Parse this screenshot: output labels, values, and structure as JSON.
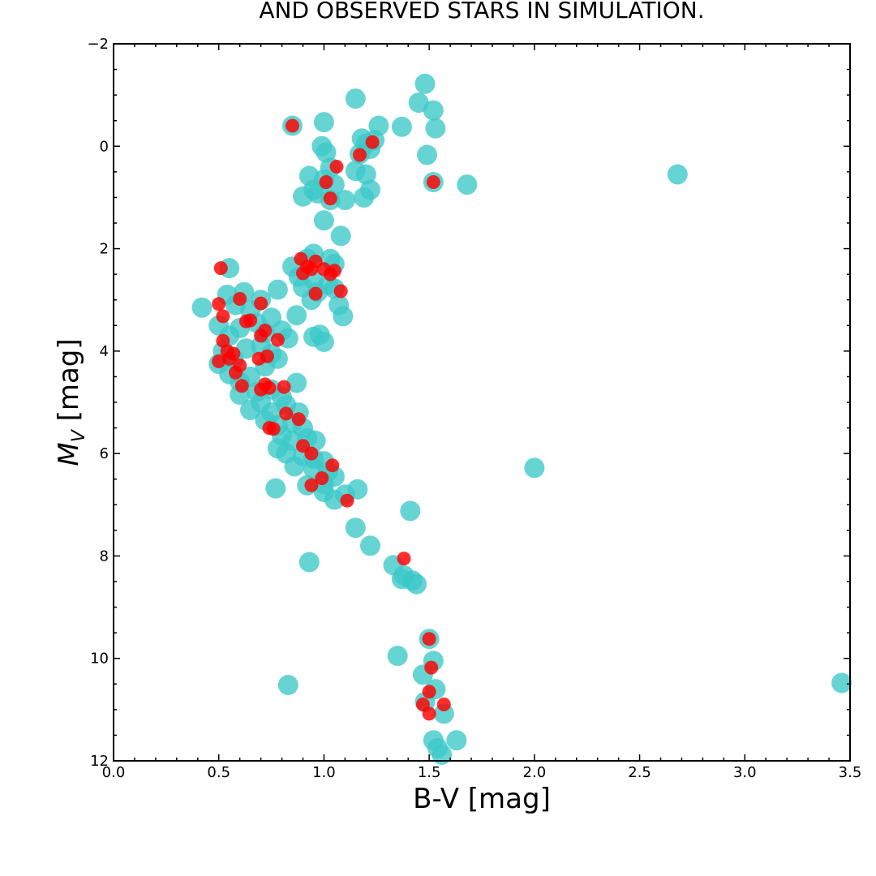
{
  "chart_data": {
    "type": "scatter",
    "title": "AND OBSERVED STARS IN SIMULATION.",
    "xlabel": "B-V [mag]",
    "ylabel_main": "M",
    "ylabel_sub": "V",
    "ylabel_rest": " [mag]",
    "xlim": [
      0.0,
      3.5
    ],
    "ylim": [
      12,
      -2
    ],
    "y_inverted": true,
    "grid": false,
    "x_ticks": [
      "0.0",
      "0.5",
      "1.0",
      "1.5",
      "2.0",
      "2.5",
      "3.0",
      "3.5"
    ],
    "y_ticks": [
      "−2",
      "0",
      "2",
      "4",
      "6",
      "8",
      "10",
      "12"
    ],
    "series": [
      {
        "color": "#3cc8c8",
        "points": [
          [
            1.48,
            -1.22
          ],
          [
            1.45,
            -0.85
          ],
          [
            1.15,
            -0.93
          ],
          [
            1.52,
            -0.7
          ],
          [
            0.85,
            -0.4
          ],
          [
            1.0,
            -0.47
          ],
          [
            1.26,
            -0.4
          ],
          [
            1.37,
            -0.38
          ],
          [
            1.53,
            -0.35
          ],
          [
            1.18,
            -0.15
          ],
          [
            1.24,
            -0.12
          ],
          [
            1.2,
            -0.05
          ],
          [
            0.99,
            0.0
          ],
          [
            1.22,
            0.05
          ],
          [
            1.01,
            0.12
          ],
          [
            1.17,
            0.15
          ],
          [
            1.49,
            0.17
          ],
          [
            1.03,
            0.42
          ],
          [
            1.15,
            0.48
          ],
          [
            0.93,
            0.58
          ],
          [
            1.2,
            0.55
          ],
          [
            1.52,
            0.7
          ],
          [
            1.68,
            0.75
          ],
          [
            2.68,
            0.55
          ],
          [
            1.0,
            0.65
          ],
          [
            1.05,
            0.75
          ],
          [
            0.95,
            0.85
          ],
          [
            1.22,
            0.85
          ],
          [
            0.9,
            0.98
          ],
          [
            1.1,
            1.05
          ],
          [
            1.03,
            1.05
          ],
          [
            1.19,
            1.0
          ],
          [
            0.97,
            0.92
          ],
          [
            1.0,
            1.45
          ],
          [
            1.08,
            1.75
          ],
          [
            0.55,
            2.38
          ],
          [
            0.85,
            2.35
          ],
          [
            0.92,
            2.2
          ],
          [
            0.95,
            2.1
          ],
          [
            1.03,
            2.2
          ],
          [
            1.05,
            2.3
          ],
          [
            0.88,
            2.55
          ],
          [
            0.95,
            2.6
          ],
          [
            1.02,
            2.7
          ],
          [
            0.9,
            2.75
          ],
          [
            1.05,
            2.78
          ],
          [
            0.97,
            2.85
          ],
          [
            0.94,
            3.0
          ],
          [
            1.07,
            3.1
          ],
          [
            1.09,
            3.32
          ],
          [
            0.87,
            3.3
          ],
          [
            0.98,
            3.68
          ],
          [
            1.0,
            3.82
          ],
          [
            0.95,
            3.72
          ],
          [
            0.42,
            3.15
          ],
          [
            0.5,
            3.5
          ],
          [
            0.54,
            2.9
          ],
          [
            0.62,
            2.85
          ],
          [
            0.58,
            3.1
          ],
          [
            0.65,
            3.2
          ],
          [
            0.7,
            3.0
          ],
          [
            0.78,
            2.8
          ],
          [
            0.75,
            3.35
          ],
          [
            0.55,
            3.7
          ],
          [
            0.6,
            3.55
          ],
          [
            0.68,
            3.45
          ],
          [
            0.72,
            3.65
          ],
          [
            0.8,
            3.6
          ],
          [
            0.83,
            3.75
          ],
          [
            0.52,
            4.0
          ],
          [
            0.57,
            4.15
          ],
          [
            0.63,
            3.95
          ],
          [
            0.7,
            3.9
          ],
          [
            0.75,
            4.05
          ],
          [
            0.5,
            4.25
          ],
          [
            0.55,
            4.45
          ],
          [
            0.6,
            4.6
          ],
          [
            0.65,
            4.5
          ],
          [
            0.72,
            4.3
          ],
          [
            0.78,
            4.15
          ],
          [
            0.6,
            4.85
          ],
          [
            0.68,
            4.8
          ],
          [
            0.75,
            4.75
          ],
          [
            0.8,
            4.9
          ],
          [
            0.87,
            4.62
          ],
          [
            0.65,
            5.15
          ],
          [
            0.7,
            5.0
          ],
          [
            0.75,
            5.2
          ],
          [
            0.82,
            5.05
          ],
          [
            0.88,
            5.2
          ],
          [
            0.72,
            5.35
          ],
          [
            0.78,
            5.45
          ],
          [
            0.85,
            5.4
          ],
          [
            0.9,
            5.5
          ],
          [
            0.8,
            5.65
          ],
          [
            0.85,
            5.75
          ],
          [
            0.92,
            5.7
          ],
          [
            0.96,
            5.75
          ],
          [
            0.78,
            5.9
          ],
          [
            0.82,
            6.0
          ],
          [
            0.9,
            6.05
          ],
          [
            0.95,
            6.1
          ],
          [
            1.0,
            6.15
          ],
          [
            0.86,
            6.25
          ],
          [
            0.95,
            6.3
          ],
          [
            1.02,
            6.35
          ],
          [
            1.05,
            6.45
          ],
          [
            1.0,
            6.6
          ],
          [
            0.92,
            6.62
          ],
          [
            1.0,
            6.75
          ],
          [
            1.05,
            6.9
          ],
          [
            1.1,
            6.8
          ],
          [
            1.16,
            6.7
          ],
          [
            0.77,
            6.68
          ],
          [
            2.0,
            6.28
          ],
          [
            1.41,
            7.12
          ],
          [
            1.15,
            7.45
          ],
          [
            1.22,
            7.8
          ],
          [
            0.93,
            8.12
          ],
          [
            1.33,
            8.18
          ],
          [
            1.38,
            8.38
          ],
          [
            1.42,
            8.48
          ],
          [
            1.37,
            8.45
          ],
          [
            1.44,
            8.55
          ],
          [
            1.5,
            9.62
          ],
          [
            1.35,
            9.95
          ],
          [
            1.47,
            10.32
          ],
          [
            1.52,
            10.05
          ],
          [
            1.53,
            10.6
          ],
          [
            1.48,
            10.85
          ],
          [
            1.57,
            11.08
          ],
          [
            1.52,
            11.6
          ],
          [
            1.63,
            11.6
          ],
          [
            1.54,
            11.75
          ],
          [
            1.56,
            11.88
          ],
          [
            0.83,
            10.52
          ],
          [
            3.46,
            10.48
          ]
        ]
      },
      {
        "color": "#ff0000",
        "points": [
          [
            0.85,
            -0.4
          ],
          [
            1.23,
            -0.08
          ],
          [
            1.17,
            0.17
          ],
          [
            1.06,
            0.4
          ],
          [
            1.01,
            0.7
          ],
          [
            1.52,
            0.7
          ],
          [
            1.03,
            1.02
          ],
          [
            0.51,
            2.38
          ],
          [
            0.89,
            2.2
          ],
          [
            0.92,
            2.35
          ],
          [
            0.96,
            2.25
          ],
          [
            0.9,
            2.48
          ],
          [
            0.94,
            2.4
          ],
          [
            1.0,
            2.4
          ],
          [
            1.03,
            2.5
          ],
          [
            1.05,
            2.43
          ],
          [
            0.96,
            2.88
          ],
          [
            1.08,
            2.83
          ],
          [
            0.5,
            3.08
          ],
          [
            0.52,
            3.32
          ],
          [
            0.6,
            2.98
          ],
          [
            0.63,
            3.42
          ],
          [
            0.65,
            3.4
          ],
          [
            0.7,
            3.07
          ],
          [
            0.72,
            3.6
          ],
          [
            0.7,
            3.7
          ],
          [
            0.78,
            3.78
          ],
          [
            0.52,
            3.8
          ],
          [
            0.54,
            4.0
          ],
          [
            0.57,
            4.05
          ],
          [
            0.55,
            4.15
          ],
          [
            0.5,
            4.2
          ],
          [
            0.58,
            4.42
          ],
          [
            0.6,
            4.28
          ],
          [
            0.73,
            4.1
          ],
          [
            0.69,
            4.15
          ],
          [
            0.61,
            4.68
          ],
          [
            0.72,
            4.65
          ],
          [
            0.74,
            4.72
          ],
          [
            0.7,
            4.75
          ],
          [
            0.81,
            4.7
          ],
          [
            0.88,
            5.33
          ],
          [
            0.82,
            5.22
          ],
          [
            0.74,
            5.5
          ],
          [
            0.76,
            5.52
          ],
          [
            0.9,
            5.85
          ],
          [
            0.94,
            6.0
          ],
          [
            1.04,
            6.23
          ],
          [
            0.94,
            6.62
          ],
          [
            0.99,
            6.48
          ],
          [
            1.11,
            6.92
          ],
          [
            1.38,
            8.05
          ],
          [
            1.5,
            9.62
          ],
          [
            1.51,
            10.18
          ],
          [
            1.5,
            10.65
          ],
          [
            1.47,
            10.9
          ],
          [
            1.5,
            11.08
          ],
          [
            1.57,
            10.9
          ]
        ]
      }
    ]
  }
}
